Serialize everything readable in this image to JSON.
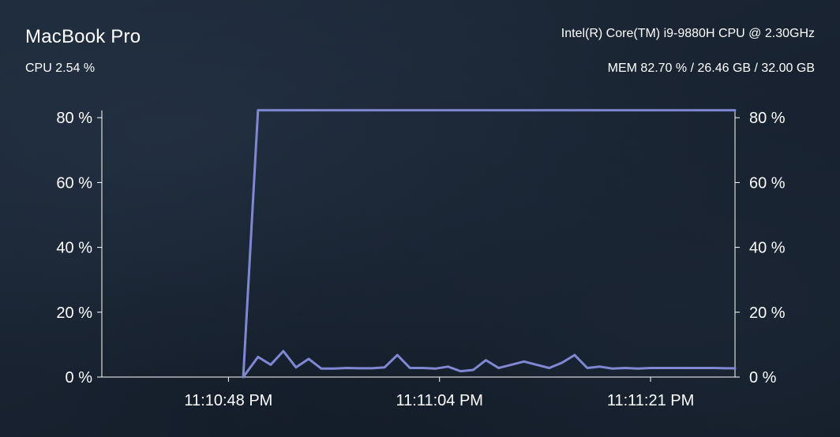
{
  "header": {
    "title": "MacBook Pro",
    "cpu_model": "Intel(R) Core(TM) i9-9880H CPU @ 2.30GHz",
    "cpu_usage": "CPU 2.54 %",
    "mem_usage": "MEM 82.70 % / 26.46 GB / 32.00 GB"
  },
  "colors": {
    "line": "#8088d4",
    "axis": "#ffffff"
  },
  "chart_data": {
    "type": "line",
    "title": "",
    "xlabel": "",
    "ylabel": "",
    "ylim": [
      0,
      82
    ],
    "yticks": [
      0,
      20,
      40,
      60,
      80
    ],
    "ytick_labels": [
      "0 %",
      "20 %",
      "40 %",
      "60 %",
      "80 %"
    ],
    "xlim": [
      0,
      60
    ],
    "xticks": [
      {
        "x": 12,
        "label": "11:10:48 PM"
      },
      {
        "x": 32,
        "label": "11:11:04 PM"
      },
      {
        "x": 52,
        "label": "11:11:21 PM"
      }
    ],
    "grid": false,
    "legend": "none",
    "series": [
      {
        "x": [
          13.4,
          14.8,
          16,
          17,
          18.2,
          19.2,
          20.4,
          22,
          24,
          26,
          28,
          30,
          32,
          34,
          36,
          38,
          40,
          42,
          44,
          46,
          48,
          50,
          52,
          54,
          55.4,
          57,
          58.8,
          60
        ],
        "y": [
          0,
          82.3,
          82.3,
          82.3,
          82.3,
          82.3,
          82.3,
          82.3,
          82.3,
          82.3,
          82.3,
          82.3,
          82.3,
          82.3,
          82.3,
          82.3,
          82.3,
          82.3,
          82.3,
          82.3,
          82.3,
          82.3,
          82.3,
          82.3,
          82.3,
          82.3,
          82.3,
          82.3
        ]
      },
      {
        "x": [
          13.4,
          14.8,
          16,
          17.2,
          18.4,
          19.6,
          20.8,
          22,
          23.2,
          24.4,
          25.6,
          26.8,
          28,
          29.2,
          30.4,
          31.6,
          32.8,
          34,
          35.2,
          36.4,
          37.6,
          38.8,
          40,
          41.2,
          42.4,
          43.6,
          44.8,
          46,
          47.2,
          48.4,
          49.6,
          50.8,
          52,
          53.2,
          54.4,
          55.6,
          56.8,
          58,
          59.2,
          60
        ],
        "y": [
          0,
          6.2,
          3.8,
          8.0,
          3.0,
          5.6,
          2.6,
          2.6,
          2.8,
          2.7,
          2.7,
          3.0,
          6.8,
          2.8,
          2.8,
          2.6,
          3.2,
          1.8,
          2.2,
          5.2,
          2.8,
          3.8,
          4.8,
          3.8,
          2.8,
          4.4,
          6.8,
          2.8,
          3.2,
          2.6,
          2.8,
          2.6,
          2.8,
          2.8,
          2.8,
          2.8,
          2.8,
          2.8,
          2.7,
          2.7
        ]
      }
    ]
  }
}
